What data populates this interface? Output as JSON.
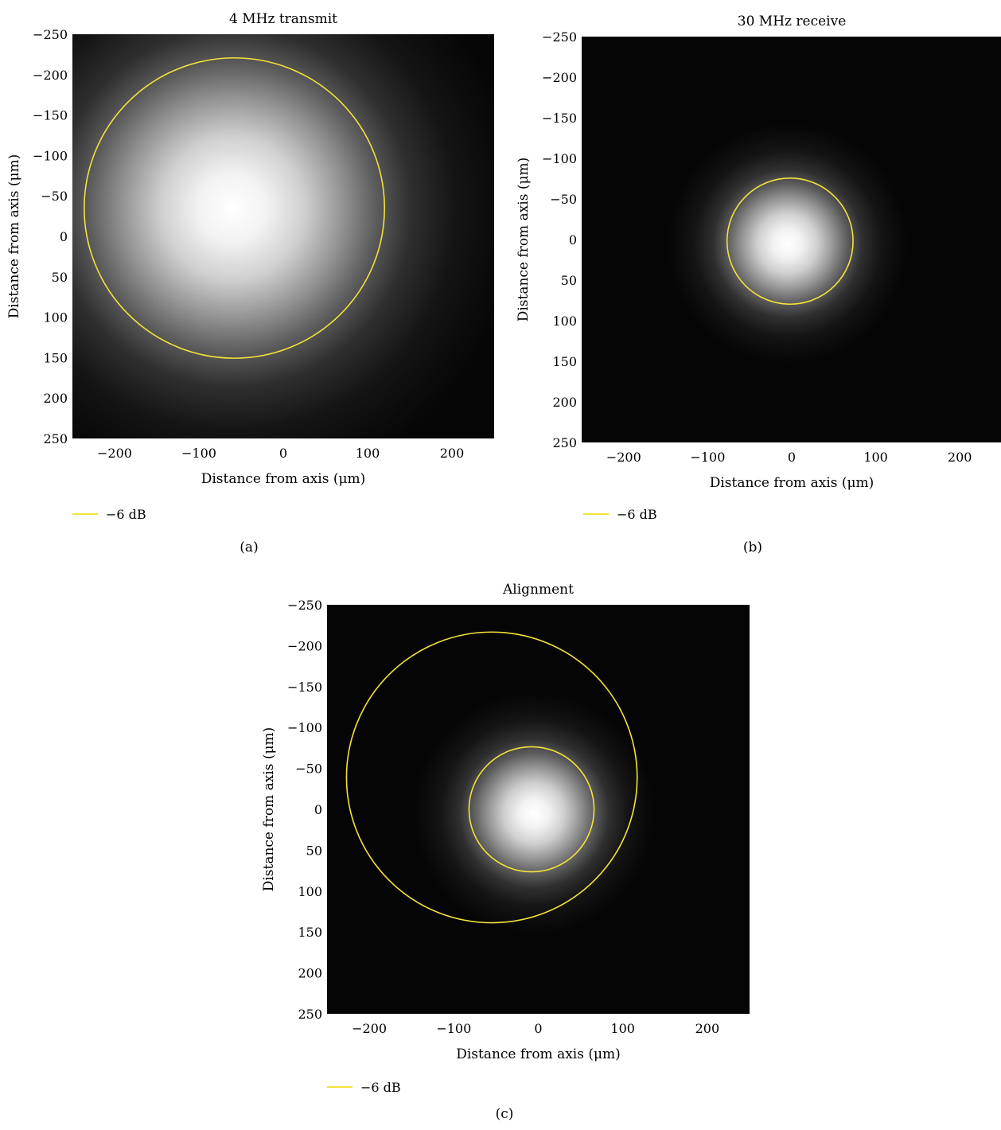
{
  "chart_data": [
    {
      "type": "heatmap",
      "panel_label": "(a)",
      "title": "4 MHz transmit",
      "xlabel": "Distance from axis (μm)",
      "ylabel": "Distance from axis (μm)",
      "xlim": [
        -250,
        250
      ],
      "ylim": [
        -250,
        250
      ],
      "y_inverted": true,
      "x_ticks": [
        "−200",
        "−100",
        "0",
        "100",
        "200"
      ],
      "x_tick_values": [
        -200,
        -100,
        0,
        100,
        200
      ],
      "y_ticks": [
        "−250",
        "−200",
        "−150",
        "−100",
        "−50",
        "0",
        "50",
        "100",
        "150",
        "200",
        "250"
      ],
      "y_tick_values": [
        -250,
        -200,
        -150,
        -100,
        -50,
        0,
        50,
        100,
        150,
        200,
        250
      ],
      "colormap": "gray",
      "intensity_peak": {
        "x": -60,
        "y": -35
      },
      "intensity_spread": 155,
      "contours": [
        {
          "level": "−6 dB",
          "cx": -58,
          "cy": -35,
          "r": 178,
          "color": "#f2e33a"
        }
      ],
      "legend": {
        "label": "−6 dB",
        "color": "#f2e33a",
        "placement": "bottom-left"
      }
    },
    {
      "type": "heatmap",
      "panel_label": "(b)",
      "title": "30 MHz receive",
      "xlabel": "Distance from axis (μm)",
      "ylabel": "Distance from axis (μm)",
      "xlim": [
        -250,
        250
      ],
      "ylim": [
        -250,
        250
      ],
      "y_inverted": true,
      "x_ticks": [
        "−200",
        "−100",
        "0",
        "100",
        "200"
      ],
      "x_tick_values": [
        -200,
        -100,
        0,
        100,
        200
      ],
      "y_ticks": [
        "−250",
        "−200",
        "−150",
        "−100",
        "−50",
        "0",
        "50",
        "100",
        "150",
        "200",
        "250"
      ],
      "y_tick_values": [
        -250,
        -200,
        -150,
        -100,
        -50,
        0,
        50,
        100,
        150,
        200,
        250
      ],
      "colormap": "gray",
      "intensity_peak": {
        "x": -5,
        "y": 5
      },
      "intensity_spread": 65,
      "contours": [
        {
          "level": "−6 dB",
          "cx": -2,
          "cy": 2,
          "r": 75,
          "color": "#f2e33a"
        }
      ],
      "legend": {
        "label": "−6 dB",
        "color": "#f2e33a",
        "placement": "bottom-left"
      }
    },
    {
      "type": "heatmap",
      "panel_label": "(c)",
      "title": "Alignment",
      "xlabel": "Distance from axis (μm)",
      "ylabel": "Distance from axis (μm)",
      "xlim": [
        -250,
        250
      ],
      "ylim": [
        -250,
        250
      ],
      "y_inverted": true,
      "x_ticks": [
        "−200",
        "−100",
        "0",
        "100",
        "200"
      ],
      "x_tick_values": [
        -200,
        -100,
        0,
        100,
        200
      ],
      "y_ticks": [
        "−250",
        "−200",
        "−150",
        "−100",
        "−50",
        "0",
        "50",
        "100",
        "150",
        "200",
        "250"
      ],
      "y_tick_values": [
        -250,
        -200,
        -150,
        -100,
        -50,
        0,
        50,
        100,
        150,
        200,
        250
      ],
      "colormap": "gray",
      "intensity_peak": {
        "x": -5,
        "y": 5
      },
      "intensity_spread": 65,
      "contours": [
        {
          "level": "−6 dB",
          "cx": -55,
          "cy": -39,
          "r": 172,
          "color": "#f2e33a"
        },
        {
          "level": "−6 dB",
          "cx": -8,
          "cy": 0,
          "r": 74,
          "color": "#f2e33a"
        }
      ],
      "legend": {
        "label": "−6 dB",
        "color": "#f2e33a",
        "placement": "bottom-left"
      }
    }
  ]
}
